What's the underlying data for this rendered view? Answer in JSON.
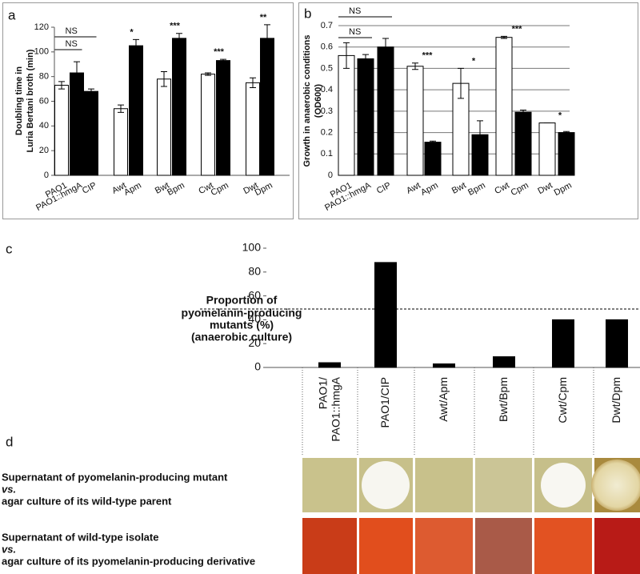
{
  "chart_data": [
    {
      "type": "bar",
      "label": "a",
      "ylabel": [
        "Doubling time in",
        "Luria Bertani broth (min)"
      ],
      "categories": [
        "PAO1",
        "PAO1::hmgA",
        "CIP",
        "Awt",
        "Apm",
        "Bwt",
        "Bpm",
        "Cwt",
        "Cpm",
        "Dwt",
        "Dpm"
      ],
      "values": [
        73,
        83,
        68,
        54,
        105,
        78,
        111,
        82,
        93,
        75,
        111
      ],
      "errors": [
        3,
        9,
        2,
        3,
        5,
        6,
        4,
        1,
        1,
        4,
        11
      ],
      "colors": [
        "#ffffff",
        "#000000",
        "#000000",
        "#ffffff",
        "#000000",
        "#ffffff",
        "#000000",
        "#ffffff",
        "#000000",
        "#ffffff",
        "#000000"
      ],
      "ylim": [
        0,
        120
      ],
      "yticks": [
        0,
        20,
        40,
        60,
        80,
        100,
        120
      ],
      "grid": false,
      "annotations": [
        {
          "text": "NS",
          "from": "PAO1",
          "to": "PAO1::hmgA",
          "bracket": true
        },
        {
          "text": "NS",
          "from": "PAO1",
          "to": "CIP",
          "bracket": true
        },
        {
          "text": "*",
          "from": "Awt",
          "to": "Apm",
          "bracket": false
        },
        {
          "text": "***",
          "from": "Bwt",
          "to": "Bpm",
          "bracket": false
        },
        {
          "text": "***",
          "from": "Cwt",
          "to": "Cpm",
          "bracket": false
        },
        {
          "text": "**",
          "from": "Dwt",
          "to": "Dpm",
          "bracket": false
        }
      ]
    },
    {
      "type": "bar",
      "label": "b",
      "ylabel": [
        "Growth in anaerobic conditions",
        "(OD600)"
      ],
      "categories": [
        "PAO1",
        "PAO1::hmgA",
        "CIP",
        "Awt",
        "Apm",
        "Bwt",
        "Bpm",
        "Cwt",
        "Cpm",
        "Dwt",
        "Dpm"
      ],
      "values": [
        0.56,
        0.545,
        0.6,
        0.51,
        0.155,
        0.43,
        0.19,
        0.645,
        0.295,
        0.245,
        0.2
      ],
      "errors": [
        0.06,
        0.02,
        0.04,
        0.015,
        0.005,
        0.07,
        0.065,
        0.005,
        0.01,
        0,
        0.005
      ],
      "colors": [
        "#ffffff",
        "#000000",
        "#000000",
        "#ffffff",
        "#000000",
        "#ffffff",
        "#000000",
        "#ffffff",
        "#000000",
        "#ffffff",
        "#000000"
      ],
      "ylim": [
        0,
        0.7
      ],
      "yticks": [
        0,
        0.1,
        0.2,
        0.3,
        0.4,
        0.5,
        0.6,
        0.7
      ],
      "grid": true,
      "annotations": [
        {
          "text": "NS",
          "from": "PAO1",
          "to": "PAO1::hmgA",
          "bracket": true
        },
        {
          "text": "NS",
          "from": "PAO1",
          "to": "CIP",
          "bracket": true
        },
        {
          "text": "***",
          "from": "Awt",
          "to": "Apm",
          "bracket": false
        },
        {
          "text": "*",
          "from": "Bwt",
          "to": "Bpm",
          "bracket": false
        },
        {
          "text": "***",
          "from": "Cwt",
          "to": "Cpm",
          "bracket": false
        },
        {
          "text": "*",
          "from": "Dwt",
          "to": "Dpm",
          "bracket": false
        }
      ]
    },
    {
      "type": "bar",
      "label": "c",
      "ylabel": [
        "Proportion of",
        "pyomelanin-producing",
        "mutants (%)",
        "(anaerobic culture)"
      ],
      "categories": [
        "PAO1/\nPAO1::hmgA",
        "PAO1/CIP",
        "Awt/Apm",
        "Bwt/Bpm",
        "Cwt/Cpm",
        "Dwt/Dpm"
      ],
      "values": [
        4,
        88,
        3,
        9,
        40,
        40
      ],
      "color": "#000000",
      "ylim": [
        0,
        100
      ],
      "yticks": [
        0,
        20,
        40,
        60,
        80,
        100
      ],
      "grid": false,
      "reference_line": 49
    }
  ],
  "panel_d": {
    "label": "d",
    "rows": [
      [
        "Supernatant of pyomelanin-producing mutant",
        "vs.",
        "agar culture of its wild-type parent"
      ],
      [
        "Supernatant of wild-type isolate",
        "vs.",
        "agar culture of its pyomelanin-producing derivative"
      ]
    ]
  }
}
